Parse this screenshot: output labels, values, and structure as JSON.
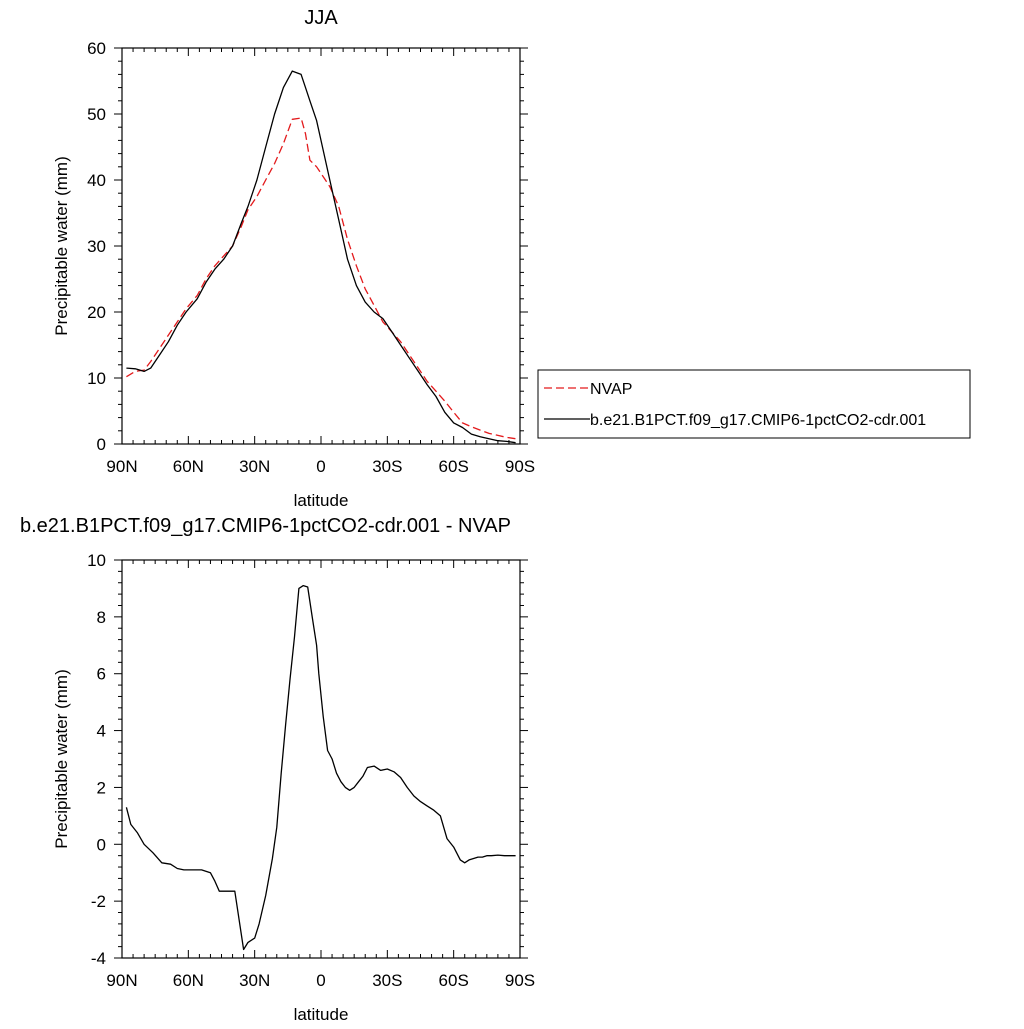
{
  "chart_data": [
    {
      "type": "line",
      "title": "JJA",
      "xlabel": "latitude",
      "ylabel": "Precipitable water (mm)",
      "xlim": [
        90,
        -90
      ],
      "ylim": [
        0,
        60
      ],
      "x_ticks": [
        90,
        60,
        30,
        0,
        -30,
        -60,
        -90
      ],
      "x_tick_labels": [
        "90N",
        "60N",
        "30N",
        "0",
        "30S",
        "60S",
        "90S"
      ],
      "y_ticks": [
        0,
        10,
        20,
        30,
        40,
        50,
        60
      ],
      "y_tick_labels": [
        "0",
        "10",
        "20",
        "30",
        "40",
        "50",
        "60"
      ],
      "legend_position": "right",
      "series": [
        {
          "name": "NVAP",
          "color": "#e31a1c",
          "style": "dashed",
          "x": [
            88,
            84,
            80,
            77,
            73,
            69,
            65,
            61,
            56,
            52,
            48,
            44,
            40,
            36,
            33,
            29,
            25,
            21,
            17,
            13,
            9,
            7,
            5,
            2,
            0,
            -4,
            -8,
            -12,
            -16,
            -20,
            -24,
            -28,
            -32,
            -36,
            -40,
            -44,
            -48,
            -52,
            -56,
            -60,
            -64,
            -68,
            -72,
            -76,
            -80,
            -84,
            -88
          ],
          "y": [
            10.2,
            11.0,
            11.2,
            12.5,
            14.5,
            16.5,
            18.5,
            20.5,
            22.5,
            25,
            27,
            28.5,
            30,
            33,
            35.5,
            37.5,
            40,
            42.5,
            45.5,
            49.2,
            49.4,
            47,
            43,
            42,
            41,
            39,
            36,
            31,
            27,
            23.5,
            21,
            18.5,
            17,
            15.5,
            13.5,
            11.5,
            9.5,
            8,
            6.5,
            4.8,
            3.2,
            2.6,
            2.1,
            1.6,
            1.3,
            1.0,
            0.8
          ]
        },
        {
          "name": "b.e21.B1PCT.f09_g17.CMIP6-1pctCO2-cdr.001",
          "color": "#000000",
          "style": "solid",
          "x": [
            88,
            84,
            80,
            77,
            73,
            69,
            65,
            61,
            56,
            52,
            48,
            44,
            40,
            36,
            33,
            29,
            25,
            21,
            17,
            13,
            9,
            7,
            5,
            2,
            0,
            -4,
            -8,
            -12,
            -16,
            -20,
            -24,
            -28,
            -32,
            -36,
            -40,
            -44,
            -48,
            -52,
            -56,
            -60,
            -64,
            -68,
            -72,
            -76,
            -80,
            -84,
            -88
          ],
          "y": [
            11.5,
            11.4,
            11.0,
            11.5,
            13.5,
            15.5,
            18,
            20,
            22,
            24.5,
            26.5,
            28,
            30,
            33.5,
            36,
            40,
            45,
            50,
            54,
            56.5,
            56,
            54,
            52,
            49,
            46,
            40,
            34,
            28,
            24,
            21.5,
            20,
            19,
            17,
            15,
            13,
            11,
            9,
            7.2,
            4.8,
            3.2,
            2.5,
            1.5,
            1.1,
            0.8,
            0.5,
            0.4,
            0.2
          ]
        }
      ]
    },
    {
      "type": "line",
      "title": "b.e21.B1PCT.f09_g17.CMIP6-1pctCO2-cdr.001 - NVAP",
      "xlabel": "latitude",
      "ylabel": "Precipitable water (mm)",
      "xlim": [
        90,
        -90
      ],
      "ylim": [
        -4,
        10
      ],
      "x_ticks": [
        90,
        60,
        30,
        0,
        -30,
        -60,
        -90
      ],
      "x_tick_labels": [
        "90N",
        "60N",
        "30N",
        "0",
        "30S",
        "60S",
        "90S"
      ],
      "y_ticks": [
        -4,
        -2,
        0,
        2,
        4,
        6,
        8,
        10
      ],
      "y_tick_labels": [
        "-4",
        "-2",
        "0",
        "2",
        "4",
        "6",
        "8",
        "10"
      ],
      "series": [
        {
          "color": "#000000",
          "style": "solid",
          "x": [
            88,
            86,
            83,
            80,
            76,
            72,
            68,
            65,
            62,
            58,
            54,
            50,
            48,
            46,
            43,
            39,
            35,
            33,
            30,
            28,
            25,
            22,
            20,
            18,
            16,
            14,
            12,
            10,
            8,
            6,
            4,
            2,
            1,
            -1,
            -3,
            -5,
            -7,
            -9,
            -11,
            -13,
            -15,
            -17,
            -19,
            -21,
            -24,
            -27,
            -30,
            -33,
            -36,
            -39,
            -42,
            -45,
            -48,
            -51,
            -54,
            -57,
            -60,
            -63,
            -65,
            -67,
            -69,
            -71,
            -73,
            -75,
            -77,
            -80,
            -83,
            -86,
            -88
          ],
          "y": [
            1.3,
            0.7,
            0.4,
            0.0,
            -0.3,
            -0.65,
            -0.7,
            -0.85,
            -0.9,
            -0.9,
            -0.9,
            -1.0,
            -1.3,
            -1.65,
            -1.65,
            -1.65,
            -3.7,
            -3.45,
            -3.3,
            -2.8,
            -1.8,
            -0.5,
            0.6,
            2.5,
            4.2,
            5.8,
            7.3,
            9.0,
            9.1,
            9.05,
            8.0,
            7.0,
            6.0,
            4.5,
            3.3,
            3.0,
            2.5,
            2.2,
            2.0,
            1.9,
            2.0,
            2.2,
            2.4,
            2.7,
            2.75,
            2.6,
            2.65,
            2.55,
            2.35,
            2.0,
            1.7,
            1.5,
            1.35,
            1.2,
            1.0,
            0.2,
            -0.1,
            -0.55,
            -0.65,
            -0.55,
            -0.5,
            -0.45,
            -0.45,
            -0.4,
            -0.4,
            -0.38,
            -0.4,
            -0.4,
            -0.4
          ]
        }
      ]
    }
  ]
}
